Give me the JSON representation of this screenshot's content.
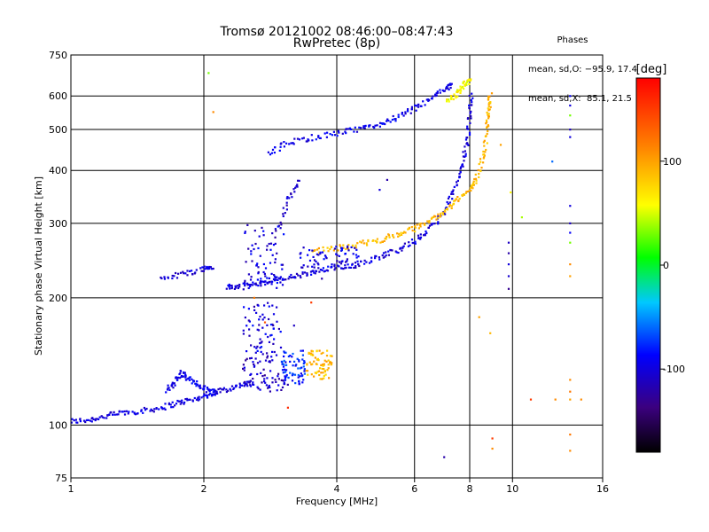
{
  "chart_data": {
    "type": "scatter",
    "title": "Tromsø 20121002 08:46:00–08:47:43",
    "subtitle": "RwPretec (8p)",
    "xlabel": "Frequency [MHz]",
    "ylabel": "Stationary phase Virtual Height [km]",
    "x_scale": "log",
    "y_scale": "log",
    "xlim": [
      1,
      16
    ],
    "ylim": [
      75,
      750
    ],
    "x_ticks": [
      1,
      2,
      4,
      6,
      8,
      10,
      16
    ],
    "y_ticks": [
      75,
      100,
      200,
      300,
      400,
      500,
      600,
      750
    ],
    "grid": true,
    "phase_stats": {
      "title": "Phases",
      "o_line": "mean, sd,O: −95.9, 17.4",
      "x_line": "mean, sd,X:  85.1, 21.5"
    },
    "colorbar": {
      "label": "[deg]",
      "range": [
        -180,
        180
      ],
      "ticks": [
        -100,
        0,
        100
      ],
      "colors": [
        "#000000",
        "#3b007f",
        "#0000ff",
        "#00c8ff",
        "#00ff00",
        "#ffff00",
        "#ff8000",
        "#ff0000"
      ]
    },
    "traces": [
      {
        "name": "",
        "phase": -100,
        "points": [
          [
            1.0,
            102
          ],
          [
            1.1,
            103
          ],
          [
            1.2,
            105
          ],
          [
            1.3,
            107
          ],
          [
            1.45,
            108
          ],
          [
            1.6,
            110
          ],
          [
            1.75,
            113
          ],
          [
            1.9,
            115
          ],
          [
            2.05,
            118
          ],
          [
            2.2,
            121
          ],
          [
            2.4,
            124
          ],
          [
            2.6,
            126
          ]
        ]
      },
      {
        "name": "",
        "phase": -95,
        "points": [
          [
            1.65,
            120
          ],
          [
            1.72,
            127
          ],
          [
            1.78,
            133
          ],
          [
            1.85,
            128
          ],
          [
            1.95,
            124
          ],
          [
            2.05,
            121
          ],
          [
            2.15,
            119
          ]
        ]
      },
      {
        "name": "",
        "phase": -100,
        "points": [
          [
            1.6,
            222
          ],
          [
            1.8,
            228
          ],
          [
            2.0,
            234
          ],
          [
            2.1,
            237
          ]
        ]
      },
      {
        "name": "",
        "phase": -100,
        "points": [
          [
            2.25,
            212
          ],
          [
            2.4,
            212
          ],
          [
            2.6,
            215
          ],
          [
            2.8,
            218
          ],
          [
            3.0,
            222
          ],
          [
            3.3,
            226
          ],
          [
            3.6,
            230
          ],
          [
            4.0,
            235
          ],
          [
            4.5,
            242
          ],
          [
            5.0,
            250
          ],
          [
            5.5,
            260
          ],
          [
            6.0,
            272
          ],
          [
            6.5,
            290
          ],
          [
            7.0,
            320
          ],
          [
            7.4,
            360
          ],
          [
            7.7,
            410
          ],
          [
            7.9,
            470
          ],
          [
            8.0,
            540
          ],
          [
            8.05,
            610
          ]
        ]
      },
      {
        "name": "",
        "phase": 90,
        "points": [
          [
            3.5,
            258
          ],
          [
            4.0,
            262
          ],
          [
            4.5,
            268
          ],
          [
            5.0,
            274
          ],
          [
            5.5,
            282
          ],
          [
            6.0,
            292
          ],
          [
            6.5,
            305
          ],
          [
            7.0,
            320
          ],
          [
            7.5,
            340
          ],
          [
            8.0,
            360
          ],
          [
            8.3,
            385
          ],
          [
            8.6,
            430
          ],
          [
            8.75,
            500
          ],
          [
            8.85,
            560
          ],
          [
            8.9,
            605
          ]
        ]
      },
      {
        "name": "",
        "phase": -95,
        "points": [
          [
            2.8,
            440
          ],
          [
            3.1,
            465
          ],
          [
            3.5,
            478
          ],
          [
            4.0,
            490
          ],
          [
            4.5,
            500
          ],
          [
            5.0,
            515
          ],
          [
            5.5,
            535
          ],
          [
            6.0,
            560
          ],
          [
            6.5,
            590
          ],
          [
            7.0,
            620
          ],
          [
            7.3,
            640
          ]
        ]
      },
      {
        "name": "",
        "phase": 60,
        "points": [
          [
            7.1,
            580
          ],
          [
            7.5,
            610
          ],
          [
            7.8,
            640
          ],
          [
            8.0,
            650
          ]
        ]
      },
      {
        "name": "",
        "phase": -110,
        "points": [
          [
            2.9,
            280
          ],
          [
            3.1,
            340
          ],
          [
            3.3,
            380
          ]
        ]
      }
    ],
    "clusters": [
      {
        "name": "",
        "phase": -100,
        "x": [
          2.45,
          3.0
        ],
        "y": [
          145,
          195
        ]
      },
      {
        "name": "",
        "phase": -110,
        "x": [
          2.45,
          3.1
        ],
        "y": [
          120,
          145
        ]
      },
      {
        "name": "",
        "phase": -80,
        "x": [
          3.0,
          3.4
        ],
        "y": [
          125,
          150
        ]
      },
      {
        "name": "",
        "phase": 90,
        "x": [
          3.4,
          3.9
        ],
        "y": [
          128,
          150
        ]
      },
      {
        "name": "",
        "phase": -100,
        "x": [
          2.45,
          3.05
        ],
        "y": [
          210,
          300
        ]
      },
      {
        "name": "",
        "phase": -100,
        "x": [
          3.3,
          4.5
        ],
        "y": [
          235,
          265
        ]
      }
    ],
    "scatter_points": [
      {
        "x": 2.05,
        "y": 680,
        "phase": 30
      },
      {
        "x": 2.1,
        "y": 550,
        "phase": 110
      },
      {
        "x": 2.6,
        "y": 200,
        "phase": 120
      },
      {
        "x": 2.75,
        "y": 175,
        "phase": 140
      },
      {
        "x": 3.1,
        "y": 110,
        "phase": 160
      },
      {
        "x": 3.2,
        "y": 172,
        "phase": -110
      },
      {
        "x": 3.5,
        "y": 195,
        "phase": 150
      },
      {
        "x": 3.7,
        "y": 222,
        "phase": -120
      },
      {
        "x": 5.0,
        "y": 360,
        "phase": -100
      },
      {
        "x": 5.2,
        "y": 380,
        "phase": -120
      },
      {
        "x": 7.0,
        "y": 84,
        "phase": -120
      },
      {
        "x": 8.4,
        "y": 180,
        "phase": 100
      },
      {
        "x": 8.9,
        "y": 165,
        "phase": 90
      },
      {
        "x": 9.0,
        "y": 93,
        "phase": 150
      },
      {
        "x": 9.0,
        "y": 88,
        "phase": 110
      },
      {
        "x": 9.4,
        "y": 460,
        "phase": 100
      },
      {
        "x": 9.8,
        "y": 270,
        "phase": -110
      },
      {
        "x": 9.8,
        "y": 255,
        "phase": -120
      },
      {
        "x": 9.8,
        "y": 240,
        "phase": -100
      },
      {
        "x": 9.8,
        "y": 225,
        "phase": -105
      },
      {
        "x": 9.8,
        "y": 210,
        "phase": -130
      },
      {
        "x": 9.9,
        "y": 355,
        "phase": 60
      },
      {
        "x": 10.5,
        "y": 310,
        "phase": 40
      },
      {
        "x": 11.0,
        "y": 115,
        "phase": 150
      },
      {
        "x": 12.3,
        "y": 420,
        "phase": -60
      },
      {
        "x": 12.5,
        "y": 115,
        "phase": 110
      },
      {
        "x": 13.5,
        "y": 600,
        "phase": -90
      },
      {
        "x": 13.5,
        "y": 570,
        "phase": -100
      },
      {
        "x": 13.5,
        "y": 540,
        "phase": 30
      },
      {
        "x": 13.5,
        "y": 500,
        "phase": -110
      },
      {
        "x": 13.5,
        "y": 480,
        "phase": -100
      },
      {
        "x": 13.5,
        "y": 330,
        "phase": -100
      },
      {
        "x": 13.5,
        "y": 300,
        "phase": -110
      },
      {
        "x": 13.5,
        "y": 285,
        "phase": -90
      },
      {
        "x": 13.5,
        "y": 270,
        "phase": 30
      },
      {
        "x": 13.5,
        "y": 240,
        "phase": 110
      },
      {
        "x": 13.5,
        "y": 225,
        "phase": 100
      },
      {
        "x": 13.5,
        "y": 128,
        "phase": 110
      },
      {
        "x": 13.5,
        "y": 120,
        "phase": 120
      },
      {
        "x": 13.5,
        "y": 115,
        "phase": 100
      },
      {
        "x": 13.5,
        "y": 95,
        "phase": 120
      },
      {
        "x": 13.5,
        "y": 87,
        "phase": 110
      },
      {
        "x": 14.3,
        "y": 115,
        "phase": 110
      }
    ]
  }
}
